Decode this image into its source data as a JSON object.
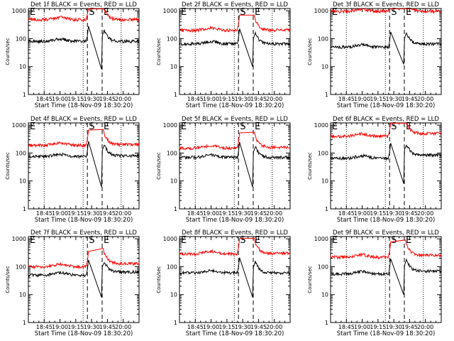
{
  "figure": {
    "colors": {
      "events": "#000000",
      "lld": "#ff0000",
      "axes": "#000000",
      "background": "#ffffff"
    },
    "common": {
      "type": "line",
      "yscale": "log",
      "ylim": [
        1,
        1200
      ],
      "xlim": [
        "18:30",
        "20:15"
      ],
      "yticks": [
        1,
        10,
        100,
        1000
      ],
      "ytick_labels": [
        "1",
        "10",
        "100",
        "1000"
      ],
      "xtick_labels": [
        "18:45",
        "19:00",
        "19:15",
        "19:30",
        "19:45",
        "20:00"
      ],
      "xlabel": "Start Time (18-Nov-09 18:30:20)",
      "ylabel": "Counts/sec",
      "dotted_vlines": [
        "18:45",
        "19:22",
        "19:58"
      ],
      "dashed_vlines": [
        "19:26",
        "19:40"
      ],
      "markers": [
        {
          "label": "E",
          "time": "18:30"
        },
        {
          "label": "S",
          "time": "19:26"
        },
        {
          "label": "E",
          "time": "19:40"
        }
      ]
    }
  },
  "chart_data": [
    {
      "title": "Det 1f BLACK = Events, RED = LLD",
      "series": [
        {
          "name": "Events",
          "color": "#000000",
          "level_before": 80,
          "level_after": 80,
          "dip": 8
        },
        {
          "name": "LLD",
          "color": "#ff0000",
          "level_before": 480,
          "level_after": 480,
          "dip": null
        }
      ]
    },
    {
      "title": "Det 2f BLACK = Events, RED = LLD",
      "series": [
        {
          "name": "Events",
          "color": "#000000",
          "level_before": 65,
          "level_after": 65,
          "dip": 10
        },
        {
          "name": "LLD",
          "color": "#ff0000",
          "level_before": 200,
          "level_after": 200,
          "dip": null
        }
      ]
    },
    {
      "title": "Det 3f BLACK = Events, RED = LLD",
      "series": [
        {
          "name": "Events",
          "color": "#000000",
          "level_before": 50,
          "level_after": 65,
          "dip": 12
        },
        {
          "name": "LLD",
          "color": "#ff0000",
          "level_before": 950,
          "level_after": 950,
          "dip": null
        }
      ]
    },
    {
      "title": "Det 4f BLACK = Events, RED = LLD",
      "series": [
        {
          "name": "Events",
          "color": "#000000",
          "level_before": 75,
          "level_after": 80,
          "dip": 6
        },
        {
          "name": "LLD",
          "color": "#ff0000",
          "level_before": 190,
          "level_after": 200,
          "dip": null
        }
      ]
    },
    {
      "title": "Det 5f BLACK = Events, RED = LLD",
      "series": [
        {
          "name": "Events",
          "color": "#000000",
          "level_before": 70,
          "level_after": 70,
          "dip": 6
        },
        {
          "name": "LLD",
          "color": "#ff0000",
          "level_before": 150,
          "level_after": 160,
          "dip": null
        }
      ]
    },
    {
      "title": "Det 6f BLACK = Events, RED = LLD",
      "series": [
        {
          "name": "Events",
          "color": "#000000",
          "level_before": 65,
          "level_after": 85,
          "dip": 8
        },
        {
          "name": "LLD",
          "color": "#ff0000",
          "level_before": 400,
          "level_after": 500,
          "dip": null
        }
      ]
    },
    {
      "title": "Det 7f BLACK = Events, RED = LLD",
      "series": [
        {
          "name": "Events",
          "color": "#000000",
          "level_before": 50,
          "level_after": 65,
          "dip": 8
        },
        {
          "name": "LLD",
          "color": "#ff0000",
          "level_before": 100,
          "level_after": 130,
          "dip": null
        }
      ]
    },
    {
      "title": "Det 8f BLACK = Events, RED = LLD",
      "series": [
        {
          "name": "Events",
          "color": "#000000",
          "level_before": 60,
          "level_after": 60,
          "dip": 8
        },
        {
          "name": "LLD",
          "color": "#ff0000",
          "level_before": 290,
          "level_after": 300,
          "dip": null
        }
      ]
    },
    {
      "title": "Det 9f BLACK = Events, RED = LLD",
      "series": [
        {
          "name": "Events",
          "color": "#000000",
          "level_before": 55,
          "level_after": 70,
          "dip": 10
        },
        {
          "name": "LLD",
          "color": "#ff0000",
          "level_before": 220,
          "level_after": 260,
          "dip": null
        }
      ]
    }
  ]
}
